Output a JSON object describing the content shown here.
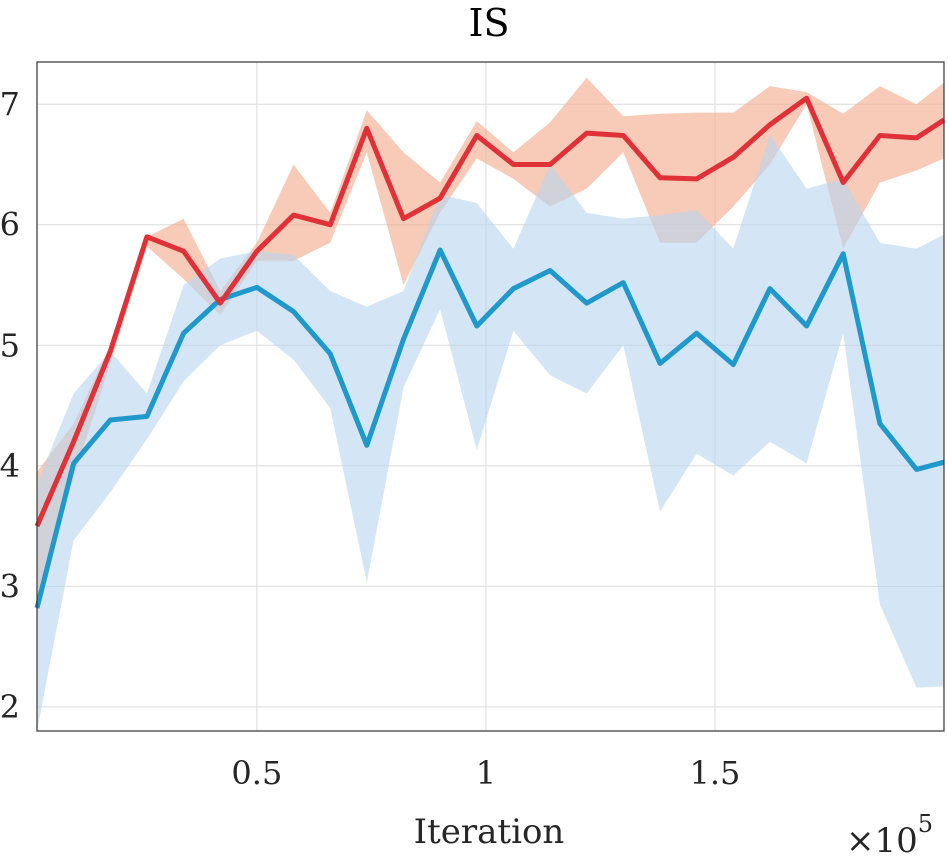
{
  "chart_data": {
    "type": "line",
    "title": "IS",
    "xlabel": "Iteration",
    "ylabel": "",
    "x_multiplier_base": "×10",
    "x_multiplier_exp": "5",
    "xlim": [
      0.02,
      2.0
    ],
    "ylim": [
      1.8,
      7.35
    ],
    "x_ticks": [
      0.5,
      1,
      1.5
    ],
    "x_tick_labels": [
      "0.5",
      "1",
      "1.5"
    ],
    "y_ticks": [
      2,
      3,
      4,
      5,
      6,
      7
    ],
    "y_tick_labels": [
      "2",
      "3",
      "4",
      "5",
      "6",
      "7"
    ],
    "grid": true,
    "legend": "none",
    "x": [
      0.02,
      0.1,
      0.18,
      0.26,
      0.34,
      0.42,
      0.5,
      0.58,
      0.66,
      0.74,
      0.82,
      0.9,
      0.98,
      1.06,
      1.14,
      1.22,
      1.3,
      1.38,
      1.46,
      1.54,
      1.62,
      1.7,
      1.78,
      1.86,
      1.94,
      2.0
    ],
    "series": [
      {
        "color": "#e03038",
        "band_color": "#f4a98a",
        "values": [
          3.5,
          4.2,
          4.95,
          5.9,
          5.78,
          5.35,
          5.78,
          6.08,
          6.0,
          6.8,
          6.05,
          6.22,
          6.74,
          6.5,
          6.5,
          6.76,
          6.74,
          6.39,
          6.38,
          6.56,
          6.83,
          7.05,
          6.35,
          6.74,
          6.72,
          6.87
        ],
        "upper": [
          3.95,
          4.35,
          5.0,
          5.9,
          6.05,
          5.45,
          5.85,
          6.5,
          6.1,
          6.95,
          6.6,
          6.35,
          6.86,
          6.6,
          6.85,
          7.22,
          6.9,
          6.92,
          6.93,
          6.93,
          7.15,
          7.1,
          6.92,
          7.15,
          7.0,
          7.18
        ],
        "lower": [
          2.9,
          3.9,
          4.85,
          5.82,
          5.55,
          5.25,
          5.7,
          5.7,
          5.85,
          6.6,
          5.5,
          6.1,
          6.55,
          6.38,
          6.15,
          6.3,
          6.6,
          5.85,
          5.85,
          6.15,
          6.5,
          7.0,
          5.8,
          6.35,
          6.45,
          6.55
        ]
      },
      {
        "color": "#1f98cc",
        "band_color": "#b8d6ee",
        "values": [
          2.82,
          4.02,
          4.38,
          4.41,
          5.1,
          5.38,
          5.48,
          5.28,
          4.93,
          4.17,
          5.05,
          5.79,
          5.16,
          5.47,
          5.62,
          5.35,
          5.52,
          4.85,
          5.1,
          4.84,
          5.47,
          5.16,
          5.76,
          4.35,
          3.97,
          4.03
        ],
        "upper": [
          3.85,
          4.6,
          4.95,
          4.6,
          5.5,
          5.72,
          5.78,
          5.75,
          5.45,
          5.32,
          5.45,
          6.25,
          6.18,
          5.8,
          6.5,
          6.1,
          6.05,
          6.08,
          6.12,
          5.8,
          6.75,
          6.3,
          6.38,
          5.85,
          5.8,
          5.92
        ],
        "lower": [
          1.8,
          3.38,
          3.78,
          4.22,
          4.7,
          5.0,
          5.12,
          4.88,
          4.48,
          3.03,
          4.65,
          5.3,
          4.13,
          5.12,
          4.75,
          4.6,
          5.0,
          3.62,
          4.1,
          3.92,
          4.2,
          4.02,
          5.1,
          2.85,
          2.16,
          2.17
        ]
      }
    ]
  }
}
